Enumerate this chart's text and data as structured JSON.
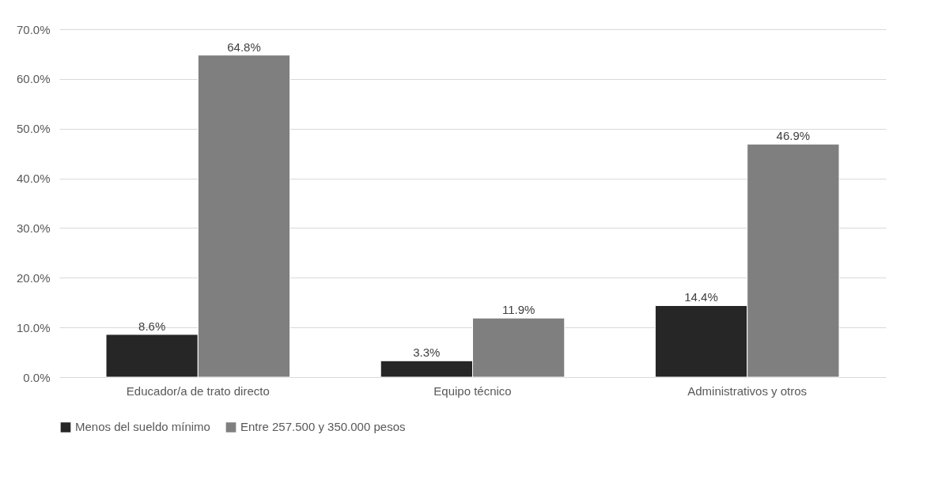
{
  "chart_data": {
    "type": "bar",
    "categories": [
      "Educador/a de trato directo",
      "Equipo técnico",
      "Administrativos y otros"
    ],
    "series": [
      {
        "name": "Menos del sueldo mínimo",
        "color": "#262626",
        "values": [
          8.6,
          3.3,
          14.4
        ],
        "value_labels": [
          "8.6%",
          "3.3%",
          "14.4%"
        ]
      },
      {
        "name": "Entre 257.500 y 350.000 pesos",
        "color": "#7f7f7f",
        "values": [
          64.8,
          11.9,
          46.9
        ],
        "value_labels": [
          "64.8%",
          "11.9%",
          "46.9%"
        ]
      }
    ],
    "ylim": [
      0,
      70
    ],
    "yticks": [
      {
        "value": 0,
        "label": "0.0%"
      },
      {
        "value": 10,
        "label": "10.0%"
      },
      {
        "value": 20,
        "label": "20.0%"
      },
      {
        "value": 30,
        "label": "30.0%"
      },
      {
        "value": 40,
        "label": "40.0%"
      },
      {
        "value": 50,
        "label": "50.0%"
      },
      {
        "value": 60,
        "label": "60.0%"
      },
      {
        "value": 70,
        "label": "70.0%"
      }
    ],
    "grid": "y",
    "legend": "bottom"
  }
}
